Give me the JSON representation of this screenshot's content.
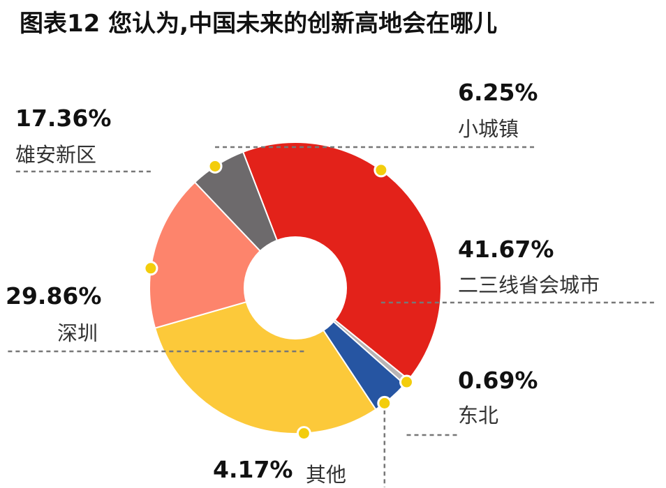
{
  "title": "图表12  您认为,中国未来的创新高地会在哪儿",
  "chart_data": {
    "type": "pie",
    "variant": "donut",
    "title": "图表12  您认为,中国未来的创新高地会在哪儿",
    "slices": [
      {
        "label": "二三线省会城市",
        "value": 41.67,
        "display": "41.67%",
        "color": "#e3221a"
      },
      {
        "label": "东北",
        "value": 0.69,
        "display": "0.69%",
        "color": "#b8b4b5"
      },
      {
        "label": "其他",
        "value": 4.17,
        "display": "4.17%",
        "color": "#2655a2"
      },
      {
        "label": "深圳",
        "value": 29.86,
        "display": "29.86%",
        "color": "#fcc93a"
      },
      {
        "label": "雄安新区",
        "value": 17.36,
        "display": "17.36%",
        "color": "#fd846c"
      },
      {
        "label": "小城镇",
        "value": 6.25,
        "display": "6.25%",
        "color": "#6d6a6c"
      }
    ],
    "marker_color": "#f3cd0c",
    "leader_color": "#777777"
  }
}
